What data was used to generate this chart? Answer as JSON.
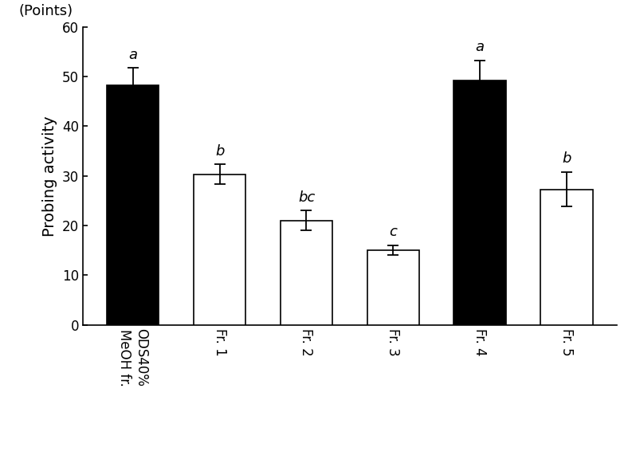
{
  "categories": [
    "ODS40%\nMeOH fr.",
    "Fr. 1",
    "Fr. 2",
    "Fr. 3",
    "Fr. 4",
    "Fr. 5"
  ],
  "values": [
    48.3,
    30.3,
    21.0,
    15.0,
    49.3,
    27.3
  ],
  "errors": [
    3.5,
    2.0,
    2.0,
    1.0,
    4.0,
    3.5
  ],
  "bar_colors": [
    "#000000",
    "#ffffff",
    "#ffffff",
    "#ffffff",
    "#000000",
    "#ffffff"
  ],
  "bar_edgecolors": [
    "#000000",
    "#000000",
    "#000000",
    "#000000",
    "#000000",
    "#000000"
  ],
  "letters": [
    "a",
    "b",
    "bc",
    "c",
    "a",
    "b"
  ],
  "ylabel": "Probing activity",
  "ylabel_units": "(Points)",
  "ylim": [
    0,
    60
  ],
  "yticks": [
    0,
    10,
    20,
    30,
    40,
    50,
    60
  ],
  "background_color": "#ffffff",
  "bar_width": 0.6,
  "letter_fontsize": 13,
  "ylabel_fontsize": 14,
  "tick_fontsize": 12,
  "units_fontsize": 13
}
